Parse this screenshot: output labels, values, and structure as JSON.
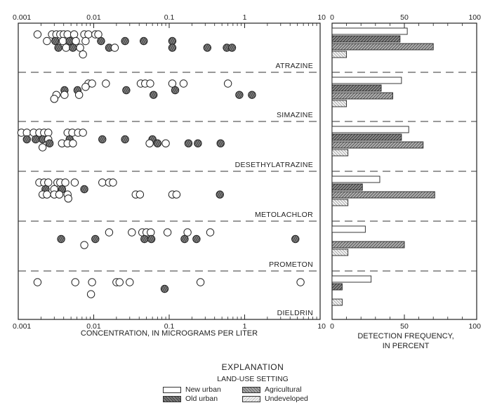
{
  "chart_data": [
    {
      "type": "scatter",
      "x_scale": "log",
      "xlim": [
        0.001,
        10
      ],
      "xlabel": "CONCENTRATION, IN MICROGRAMS PER LITER",
      "x_tick_labels": [
        "0.001",
        "0.01",
        "0.1",
        "1",
        "10"
      ],
      "marker_styles": {
        "open": "#ffffff",
        "shaded": "#707070"
      },
      "panels": [
        {
          "name": "ATRAZINE",
          "points": [
            {
              "x": 0.0018,
              "row": 0,
              "style": "open"
            },
            {
              "x": 0.0028,
              "row": 0,
              "style": "open"
            },
            {
              "x": 0.0032,
              "row": 0,
              "style": "open"
            },
            {
              "x": 0.0036,
              "row": 0,
              "style": "open"
            },
            {
              "x": 0.004,
              "row": 0,
              "style": "open"
            },
            {
              "x": 0.0045,
              "row": 0,
              "style": "open"
            },
            {
              "x": 0.0055,
              "row": 0,
              "style": "open"
            },
            {
              "x": 0.0075,
              "row": 0,
              "style": "open"
            },
            {
              "x": 0.0085,
              "row": 0,
              "style": "open"
            },
            {
              "x": 0.0105,
              "row": 0,
              "style": "open"
            },
            {
              "x": 0.0115,
              "row": 0,
              "style": "open"
            },
            {
              "x": 0.0024,
              "row": 1,
              "style": "open"
            },
            {
              "x": 0.0031,
              "row": 1,
              "style": "shaded"
            },
            {
              "x": 0.0039,
              "row": 1,
              "style": "open"
            },
            {
              "x": 0.0048,
              "row": 1,
              "style": "shaded"
            },
            {
              "x": 0.0058,
              "row": 1,
              "style": "open"
            },
            {
              "x": 0.0078,
              "row": 1,
              "style": "open"
            },
            {
              "x": 0.0125,
              "row": 1,
              "style": "shaded"
            },
            {
              "x": 0.026,
              "row": 1,
              "style": "shaded"
            },
            {
              "x": 0.046,
              "row": 1,
              "style": "shaded"
            },
            {
              "x": 0.11,
              "row": 1,
              "style": "shaded"
            },
            {
              "x": 0.0034,
              "row": 2,
              "style": "shaded"
            },
            {
              "x": 0.0043,
              "row": 2,
              "style": "open"
            },
            {
              "x": 0.0053,
              "row": 2,
              "style": "shaded"
            },
            {
              "x": 0.0066,
              "row": 2,
              "style": "open"
            },
            {
              "x": 0.016,
              "row": 2,
              "style": "shaded"
            },
            {
              "x": 0.019,
              "row": 2,
              "style": "open"
            },
            {
              "x": 0.11,
              "row": 2,
              "style": "shaded"
            },
            {
              "x": 0.32,
              "row": 2,
              "style": "shaded"
            },
            {
              "x": 0.58,
              "row": 2,
              "style": "shaded"
            },
            {
              "x": 0.68,
              "row": 2,
              "style": "shaded"
            },
            {
              "x": 0.0072,
              "row": 3,
              "style": "open"
            }
          ]
        },
        {
          "name": "SIMAZINE",
          "points": [
            {
              "x": 0.0085,
              "row": 0,
              "style": "open"
            },
            {
              "x": 0.0095,
              "row": 0,
              "style": "open"
            },
            {
              "x": 0.0145,
              "row": 0,
              "style": "open"
            },
            {
              "x": 0.042,
              "row": 0,
              "style": "open"
            },
            {
              "x": 0.048,
              "row": 0,
              "style": "open"
            },
            {
              "x": 0.056,
              "row": 0,
              "style": "open"
            },
            {
              "x": 0.11,
              "row": 0,
              "style": "open"
            },
            {
              "x": 0.155,
              "row": 0,
              "style": "open"
            },
            {
              "x": 0.6,
              "row": 0,
              "style": "open"
            },
            {
              "x": 0.0078,
              "row": 0.5,
              "style": "open"
            },
            {
              "x": 0.0041,
              "row": 1,
              "style": "shaded"
            },
            {
              "x": 0.0061,
              "row": 1,
              "style": "shaded"
            },
            {
              "x": 0.027,
              "row": 1,
              "style": "shaded"
            },
            {
              "x": 0.12,
              "row": 1,
              "style": "shaded"
            },
            {
              "x": 0.0032,
              "row": 1.7,
              "style": "open"
            },
            {
              "x": 0.0041,
              "row": 1.7,
              "style": "open"
            },
            {
              "x": 0.0064,
              "row": 1.7,
              "style": "open"
            },
            {
              "x": 0.062,
              "row": 1.7,
              "style": "shaded"
            },
            {
              "x": 0.85,
              "row": 1.7,
              "style": "shaded"
            },
            {
              "x": 1.25,
              "row": 1.7,
              "style": "shaded"
            },
            {
              "x": 0.003,
              "row": 2.3,
              "style": "open"
            }
          ]
        },
        {
          "name": "DESETHYLATRAZINE",
          "points": [
            {
              "x": 0.0011,
              "row": 0,
              "style": "open"
            },
            {
              "x": 0.0013,
              "row": 0,
              "style": "open"
            },
            {
              "x": 0.0016,
              "row": 0,
              "style": "open"
            },
            {
              "x": 0.0019,
              "row": 0,
              "style": "open"
            },
            {
              "x": 0.0022,
              "row": 0,
              "style": "open"
            },
            {
              "x": 0.0025,
              "row": 0,
              "style": "open"
            },
            {
              "x": 0.0045,
              "row": 0,
              "style": "open"
            },
            {
              "x": 0.0052,
              "row": 0,
              "style": "open"
            },
            {
              "x": 0.0062,
              "row": 0,
              "style": "open"
            },
            {
              "x": 0.0072,
              "row": 0,
              "style": "open"
            },
            {
              "x": 0.0013,
              "row": 1,
              "style": "shaded"
            },
            {
              "x": 0.0017,
              "row": 1,
              "style": "shaded"
            },
            {
              "x": 0.0021,
              "row": 1,
              "style": "shaded"
            },
            {
              "x": 0.0025,
              "row": 1,
              "style": "open"
            },
            {
              "x": 0.0048,
              "row": 1,
              "style": "shaded"
            },
            {
              "x": 0.013,
              "row": 1,
              "style": "shaded"
            },
            {
              "x": 0.026,
              "row": 1,
              "style": "shaded"
            },
            {
              "x": 0.06,
              "row": 1,
              "style": "shaded"
            },
            {
              "x": 0.0026,
              "row": 1.6,
              "style": "shaded"
            },
            {
              "x": 0.0038,
              "row": 1.6,
              "style": "open"
            },
            {
              "x": 0.0045,
              "row": 1.6,
              "style": "open"
            },
            {
              "x": 0.0053,
              "row": 1.6,
              "style": "open"
            },
            {
              "x": 0.055,
              "row": 1.6,
              "style": "open"
            },
            {
              "x": 0.07,
              "row": 1.6,
              "style": "shaded"
            },
            {
              "x": 0.09,
              "row": 1.6,
              "style": "open"
            },
            {
              "x": 0.18,
              "row": 1.6,
              "style": "shaded"
            },
            {
              "x": 0.24,
              "row": 1.6,
              "style": "shaded"
            },
            {
              "x": 0.48,
              "row": 1.6,
              "style": "shaded"
            },
            {
              "x": 0.0021,
              "row": 2.2,
              "style": "open"
            }
          ]
        },
        {
          "name": "METOLACHLOR",
          "points": [
            {
              "x": 0.0019,
              "row": 0,
              "style": "open"
            },
            {
              "x": 0.0022,
              "row": 0,
              "style": "open"
            },
            {
              "x": 0.0025,
              "row": 0,
              "style": "open"
            },
            {
              "x": 0.0033,
              "row": 0,
              "style": "open"
            },
            {
              "x": 0.0036,
              "row": 0,
              "style": "open"
            },
            {
              "x": 0.0042,
              "row": 0,
              "style": "open"
            },
            {
              "x": 0.0056,
              "row": 0,
              "style": "open"
            },
            {
              "x": 0.013,
              "row": 0,
              "style": "open"
            },
            {
              "x": 0.016,
              "row": 0,
              "style": "open"
            },
            {
              "x": 0.018,
              "row": 0,
              "style": "open"
            },
            {
              "x": 0.0023,
              "row": 1,
              "style": "shaded"
            },
            {
              "x": 0.003,
              "row": 1,
              "style": "open"
            },
            {
              "x": 0.0038,
              "row": 1,
              "style": "shaded"
            },
            {
              "x": 0.0075,
              "row": 1,
              "style": "shaded"
            },
            {
              "x": 0.0021,
              "row": 1.8,
              "style": "open"
            },
            {
              "x": 0.0024,
              "row": 1.8,
              "style": "open"
            },
            {
              "x": 0.003,
              "row": 1.8,
              "style": "open"
            },
            {
              "x": 0.0035,
              "row": 1.8,
              "style": "open"
            },
            {
              "x": 0.0045,
              "row": 1.8,
              "style": "open"
            },
            {
              "x": 0.036,
              "row": 1.8,
              "style": "open"
            },
            {
              "x": 0.041,
              "row": 1.8,
              "style": "open"
            },
            {
              "x": 0.11,
              "row": 1.8,
              "style": "open"
            },
            {
              "x": 0.125,
              "row": 1.8,
              "style": "open"
            },
            {
              "x": 0.47,
              "row": 1.8,
              "style": "shaded"
            },
            {
              "x": 0.0046,
              "row": 2.4,
              "style": "open"
            }
          ]
        },
        {
          "name": "PROMETON",
          "points": [
            {
              "x": 0.016,
              "row": 0,
              "style": "open"
            },
            {
              "x": 0.032,
              "row": 0,
              "style": "open"
            },
            {
              "x": 0.044,
              "row": 0,
              "style": "open"
            },
            {
              "x": 0.05,
              "row": 0,
              "style": "open"
            },
            {
              "x": 0.057,
              "row": 0,
              "style": "open"
            },
            {
              "x": 0.095,
              "row": 0,
              "style": "open"
            },
            {
              "x": 0.175,
              "row": 0,
              "style": "open"
            },
            {
              "x": 0.35,
              "row": 0,
              "style": "open"
            },
            {
              "x": 0.0037,
              "row": 1,
              "style": "shaded"
            },
            {
              "x": 0.0105,
              "row": 1,
              "style": "shaded"
            },
            {
              "x": 0.047,
              "row": 1,
              "style": "shaded"
            },
            {
              "x": 0.058,
              "row": 1,
              "style": "shaded"
            },
            {
              "x": 0.16,
              "row": 1,
              "style": "shaded"
            },
            {
              "x": 0.23,
              "row": 1,
              "style": "shaded"
            },
            {
              "x": 4.7,
              "row": 1,
              "style": "shaded"
            },
            {
              "x": 0.0075,
              "row": 1.9,
              "style": "open"
            }
          ]
        },
        {
          "name": "DIELDRIN",
          "points": [
            {
              "x": 0.0018,
              "row": 0,
              "style": "open"
            },
            {
              "x": 0.0057,
              "row": 0,
              "style": "open"
            },
            {
              "x": 0.0095,
              "row": 0,
              "style": "open"
            },
            {
              "x": 0.02,
              "row": 0,
              "style": "open"
            },
            {
              "x": 0.022,
              "row": 0,
              "style": "open"
            },
            {
              "x": 0.03,
              "row": 0,
              "style": "open"
            },
            {
              "x": 0.26,
              "row": 0,
              "style": "open"
            },
            {
              "x": 5.5,
              "row": 0,
              "style": "open"
            },
            {
              "x": 0.087,
              "row": 1,
              "style": "shaded"
            },
            {
              "x": 0.0092,
              "row": 1.8,
              "style": "open"
            }
          ]
        }
      ]
    },
    {
      "type": "bar",
      "orientation": "horizontal",
      "xlim": [
        0,
        100
      ],
      "xlabel_lines": [
        "DETECTION FREQUENCY,",
        "IN PERCENT"
      ],
      "x_tick_labels": [
        "0",
        "50",
        "100"
      ],
      "categories": [
        "ATRAZINE",
        "SIMAZINE",
        "DESETHYLATRAZINE",
        "METOLACHLOR",
        "PROMETON",
        "DIELDRIN"
      ],
      "series": [
        {
          "name": "New urban",
          "values": [
            52,
            48,
            53,
            33,
            23,
            27
          ]
        },
        {
          "name": "Old urban",
          "values": [
            47,
            34,
            48,
            21,
            0,
            7
          ]
        },
        {
          "name": "Agricultural",
          "values": [
            70,
            42,
            63,
            71,
            50,
            0
          ]
        },
        {
          "name": "Undeveloped",
          "values": [
            10,
            10,
            11,
            11,
            11,
            7
          ]
        }
      ]
    }
  ],
  "explanation": {
    "title": "EXPLANATION",
    "subtitle": "LAND-USE SETTING",
    "items": [
      {
        "label": "New urban",
        "swatch": "new"
      },
      {
        "label": "Agricultural",
        "swatch": "ag"
      },
      {
        "label": "Old urban",
        "swatch": "old"
      },
      {
        "label": "Undeveloped",
        "swatch": "un"
      }
    ]
  }
}
